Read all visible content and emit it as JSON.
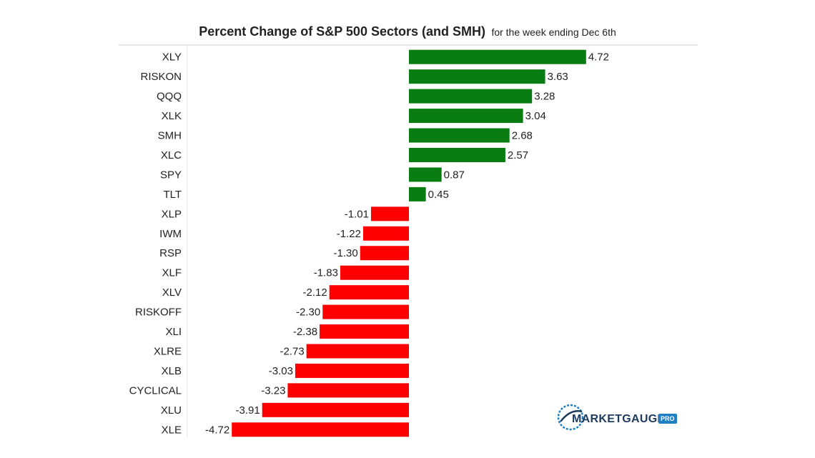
{
  "chart_data": {
    "type": "bar",
    "orientation": "horizontal",
    "title": "Percent Change of S&P 500 Sectors (and SMH)",
    "subtitle": "for the week ending Dec 6th",
    "categories": [
      "XLY",
      "RISKON",
      "QQQ",
      "XLK",
      "SMH",
      "XLC",
      "SPY",
      "TLT",
      "XLP",
      "IWM",
      "RSP",
      "XLF",
      "XLV",
      "RISKOFF",
      "XLI",
      "XLRE",
      "XLB",
      "CYCLICAL",
      "XLU",
      "XLE"
    ],
    "values": [
      4.72,
      3.63,
      3.28,
      3.04,
      2.68,
      2.57,
      0.87,
      0.45,
      -1.01,
      -1.22,
      -1.3,
      -1.83,
      -2.12,
      -2.3,
      -2.38,
      -2.73,
      -3.03,
      -3.23,
      -3.91,
      -4.72
    ],
    "value_labels": [
      "4.72",
      "3.63",
      "3.28",
      "3.04",
      "2.68",
      "2.57",
      "0.87",
      "0.45",
      "-1.01",
      "-1.22",
      "-1.30",
      "-1.83",
      "-2.12",
      "-2.30",
      "-2.38",
      "-2.73",
      "-3.03",
      "-3.23",
      "-3.91",
      "-4.72"
    ],
    "xlim": [
      -4.72,
      4.72
    ],
    "grid": false,
    "legend": "none",
    "colors": {
      "positive": "#0a7d12",
      "negative": "#ff0000"
    }
  },
  "logo": {
    "text": "MARKETGAUGE",
    "badge": "PRO"
  }
}
